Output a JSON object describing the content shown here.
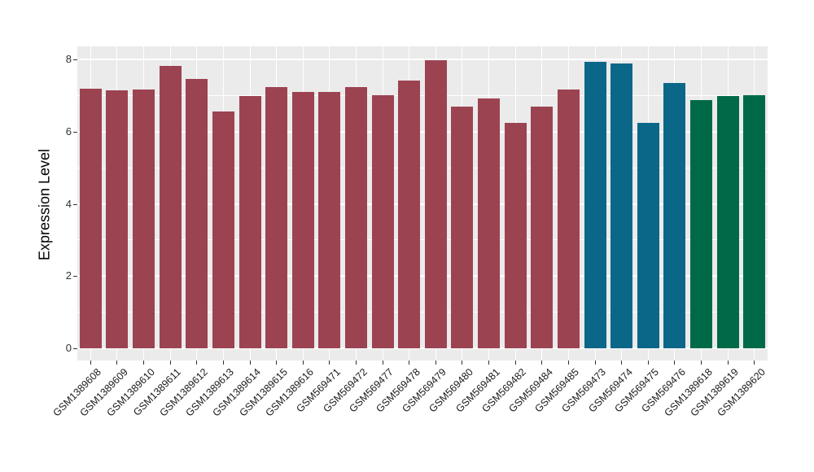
{
  "chart_data": {
    "type": "bar",
    "title": "",
    "xlabel": "",
    "ylabel": "Expression Level",
    "categories": [
      "GSM1389608",
      "GSM1389609",
      "GSM1389610",
      "GSM1389611",
      "GSM1389612",
      "GSM1389613",
      "GSM1389614",
      "GSM1389615",
      "GSM1389616",
      "GSM569471",
      "GSM569472",
      "GSM569477",
      "GSM569478",
      "GSM569479",
      "GSM569480",
      "GSM569481",
      "GSM569482",
      "GSM569484",
      "GSM569485",
      "GSM569473",
      "GSM569474",
      "GSM569475",
      "GSM569476",
      "GSM1389618",
      "GSM1389619",
      "GSM1389620"
    ],
    "values": [
      7.19,
      7.14,
      7.17,
      7.83,
      7.46,
      6.57,
      6.98,
      7.23,
      7.11,
      7.1,
      7.23,
      7.01,
      7.41,
      7.97,
      6.7,
      6.92,
      6.25,
      6.7,
      7.16,
      7.94,
      7.89,
      6.25,
      7.34,
      6.87,
      6.98,
      7.01
    ],
    "groups": [
      "maroon",
      "maroon",
      "maroon",
      "maroon",
      "maroon",
      "maroon",
      "maroon",
      "maroon",
      "maroon",
      "maroon",
      "maroon",
      "maroon",
      "maroon",
      "maroon",
      "maroon",
      "maroon",
      "maroon",
      "maroon",
      "maroon",
      "teal",
      "teal",
      "teal",
      "teal",
      "green",
      "green",
      "green"
    ],
    "group_colors": {
      "maroon": "#9C4351",
      "teal": "#0B6788",
      "green": "#006A48"
    },
    "yticks": [
      0,
      2,
      4,
      6,
      8
    ],
    "minor_yticks": [
      1,
      3,
      5,
      7
    ],
    "ylim": [
      -0.34,
      8.36
    ],
    "bar_label_angle": 45,
    "legend": "none",
    "panel_background": "#EBEBEB",
    "grid_color": "#ffffff",
    "figure_background": "#ffffff"
  }
}
